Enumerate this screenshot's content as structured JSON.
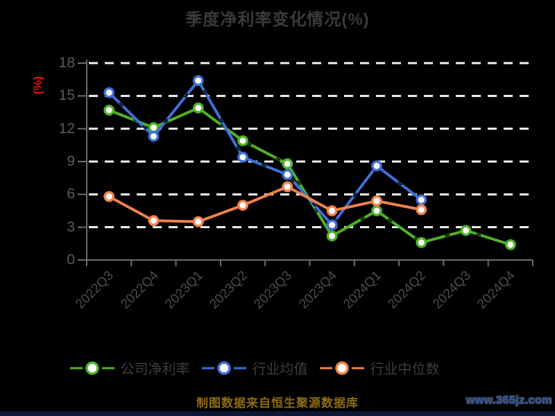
{
  "title": "季度净利率变化情况(%)",
  "footer_note": "制图数据来自恒生聚源数据库",
  "watermark": "www.365jz.com",
  "colors": {
    "background": "#000000",
    "grid_line": "#f2f2f2",
    "axis_line": "#6e6e6e",
    "y_axis_name": "#ee1111",
    "company_green": "#4fb229",
    "industry_blue": "#3f6fd8",
    "median_orange": "#f0814e"
  },
  "y_axis": {
    "name": "(%)"
  },
  "chart_data": {
    "type": "line",
    "title": "季度净利率变化情况(%)",
    "xlabel": "",
    "ylabel": "(%)",
    "ylim": [
      0,
      18
    ],
    "y_interval": 3,
    "grid": "horizontal-dashed-white",
    "legend_position": "bottom",
    "y_ticks": [
      "0",
      "3",
      "6",
      "9",
      "12",
      "15",
      "18"
    ],
    "categories": [
      "2022Q3",
      "2022Q4",
      "2023Q1",
      "2023Q2",
      "2023Q3",
      "2023Q4",
      "2024Q1",
      "2024Q2",
      "2024Q3",
      "2024Q4"
    ],
    "series": [
      {
        "name": "公司净利率",
        "color": "#4fb229",
        "marker": "circle-white-fill",
        "values": [
          13.7,
          12.1,
          13.9,
          10.9,
          8.8,
          2.2,
          4.5,
          1.6,
          2.7,
          1.4
        ]
      },
      {
        "name": "行业均值",
        "color": "#3f6fd8",
        "marker": "circle-white-fill",
        "values": [
          15.3,
          11.3,
          16.4,
          9.4,
          7.8,
          3.2,
          8.6,
          5.5,
          null,
          null
        ]
      },
      {
        "name": "行业中位数",
        "color": "#f0814e",
        "marker": "circle-white-fill",
        "values": [
          5.8,
          3.6,
          3.5,
          5.0,
          6.7,
          4.5,
          5.4,
          4.6,
          null,
          null
        ]
      }
    ]
  }
}
